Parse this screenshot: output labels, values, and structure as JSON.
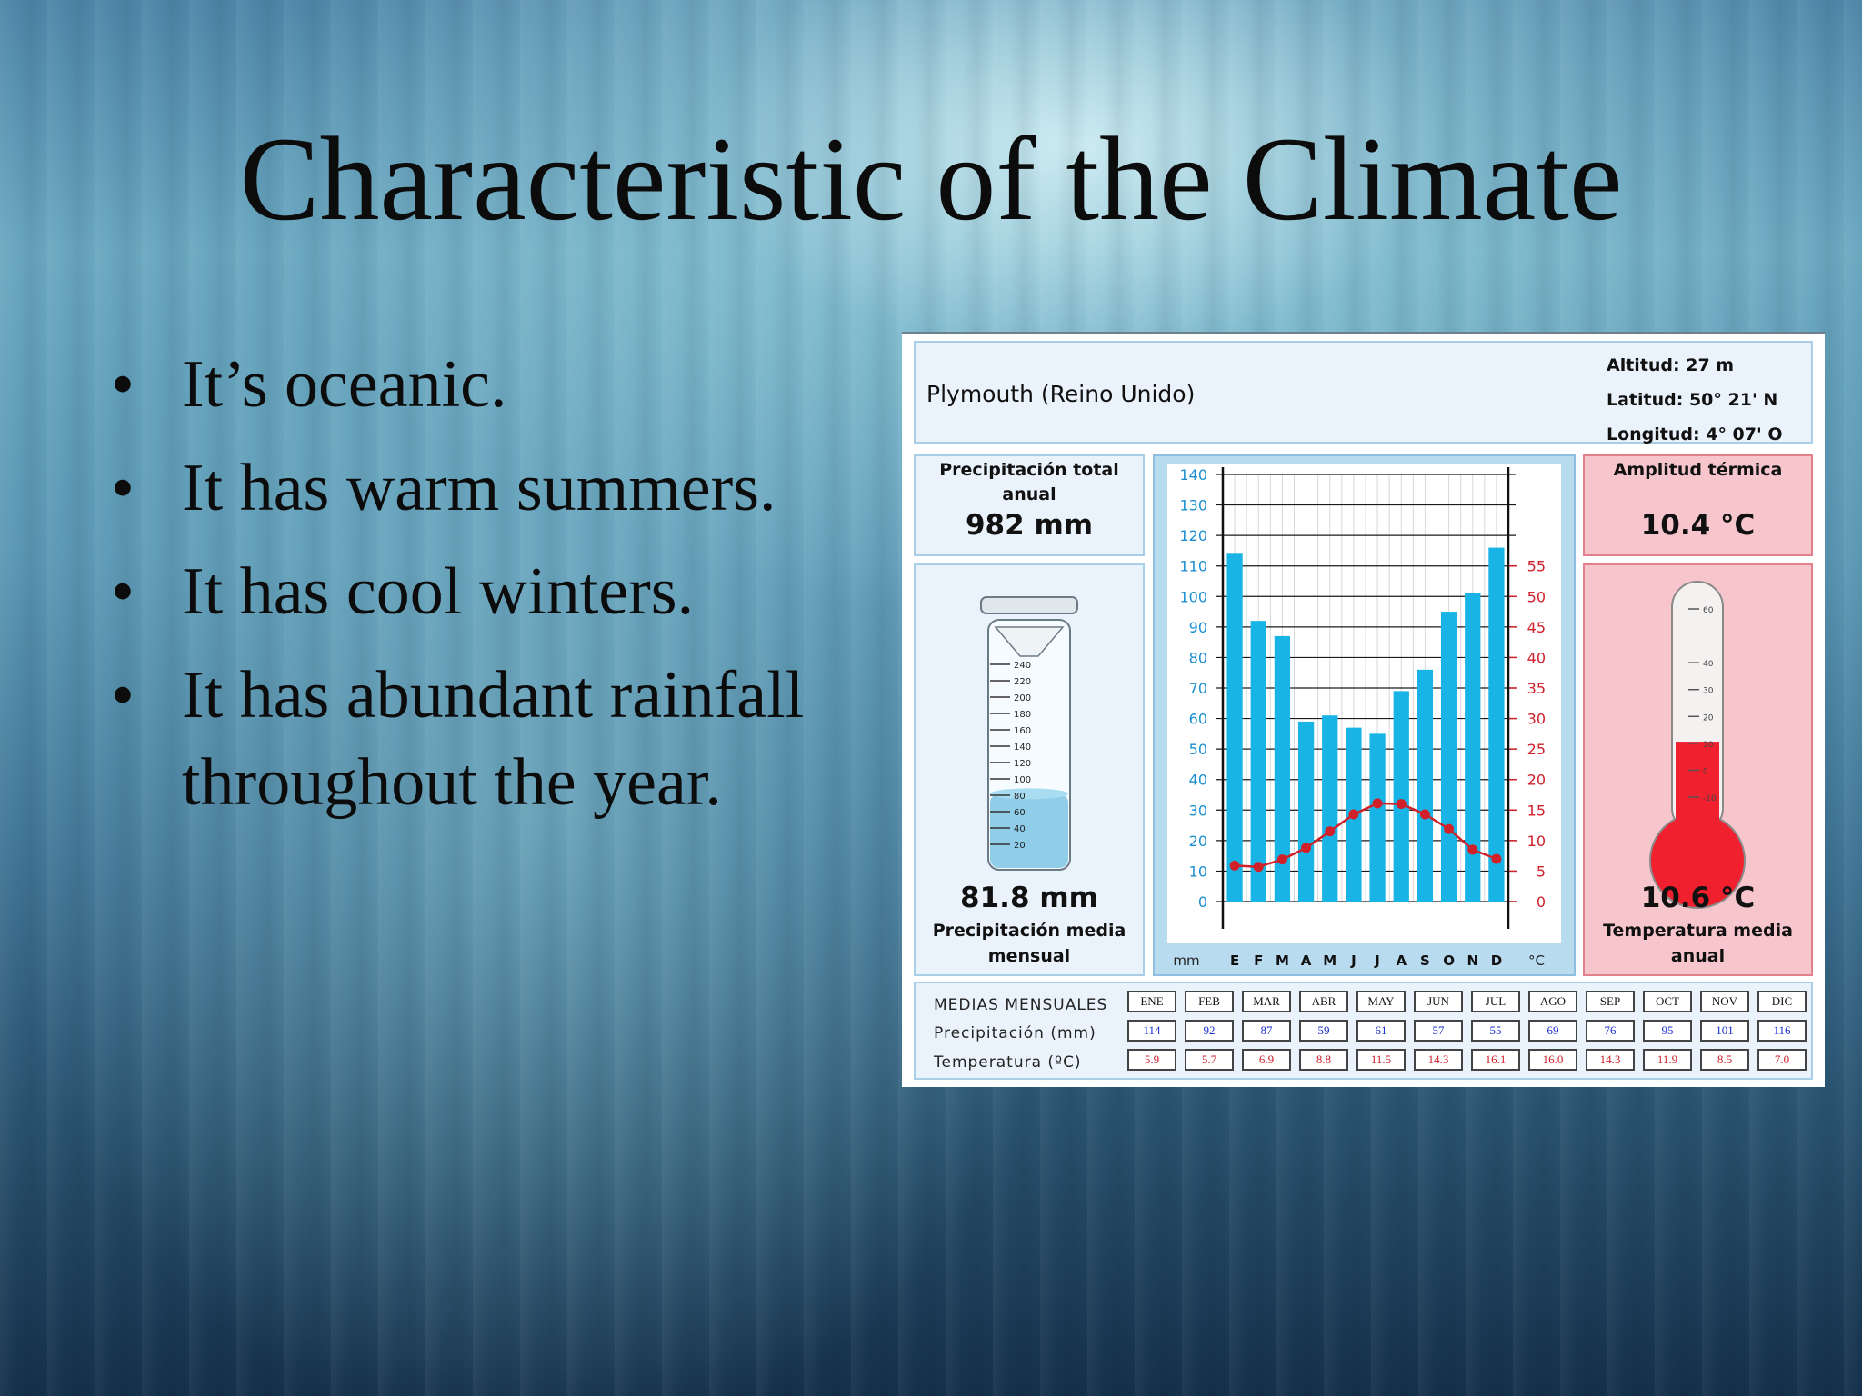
{
  "slide": {
    "title": "Characteristic of the Climate",
    "bullets": [
      "It’s oceanic.",
      "It has warm summers.",
      "It has cool winters.",
      "It has abundant rainfall throughout the year."
    ],
    "bullet_glyph": "•"
  },
  "station": {
    "name": "Plymouth (Reino Unido)",
    "altitude": "Altitud: 27 m",
    "latitude": "Latitud: 50° 21' N",
    "longitude": "Longitud:   4° 07' O"
  },
  "panels": {
    "total_precip_label": "Precipitación total anual",
    "total_precip_value": "982 mm",
    "amplitude_label": "Amplitud térmica",
    "amplitude_value": "10.4 °C",
    "monthly_precip_value": "81.8 mm",
    "monthly_precip_label": "Precipitación media mensual",
    "mean_temp_value": "10.6 °C",
    "mean_temp_label": "Temperatura media anual",
    "cylinder_ticks": [
      "240",
      "220",
      "200",
      "180",
      "160",
      "140",
      "120",
      "100",
      "80",
      "60",
      "40",
      "20"
    ],
    "cylinder_fill_value": 81.8,
    "cylinder_max": 250,
    "thermo_ticks": [
      "60",
      "40",
      "30",
      "20",
      "10",
      "0",
      "-10"
    ],
    "thermo_fill_value": 10.6
  },
  "colors": {
    "bar": "#19b4e6",
    "temp_line": "#d0202a",
    "cylinder_water": "#7cc4e4",
    "thermo_red": "#f0202e"
  },
  "chart_data": {
    "type": "bar",
    "categories": [
      "E",
      "F",
      "M",
      "A",
      "M",
      "J",
      "J",
      "A",
      "S",
      "O",
      "N",
      "D"
    ],
    "series": [
      {
        "values": [
          114,
          92,
          87,
          59,
          61,
          57,
          55,
          69,
          76,
          95,
          101,
          116
        ]
      },
      {
        "values": [
          5.9,
          5.7,
          6.9,
          8.8,
          11.5,
          14.3,
          16.1,
          16.0,
          14.3,
          11.9,
          8.5,
          7.0
        ]
      }
    ],
    "left_axis": {
      "unit": "mm",
      "ticks": [
        0,
        10,
        20,
        30,
        40,
        50,
        60,
        70,
        80,
        90,
        100,
        110,
        120,
        130,
        140
      ],
      "ylim": [
        0,
        140
      ]
    },
    "right_axis": {
      "unit": "°C",
      "ticks": [
        0,
        5,
        10,
        15,
        20,
        25,
        30,
        35,
        40,
        45,
        50,
        55
      ],
      "ylim": [
        0,
        70
      ]
    },
    "grid": true
  },
  "table": {
    "header_label": "MEDIAS MENSUALES",
    "precip_label": "Precipitación (mm)",
    "temp_label": "Temperatura (ºC)",
    "months": [
      "ENE",
      "FEB",
      "MAR",
      "ABR",
      "MAY",
      "JUN",
      "JUL",
      "AGO",
      "SEP",
      "OCT",
      "NOV",
      "DIC"
    ],
    "precip": [
      "114",
      "92",
      "87",
      "59",
      "61",
      "57",
      "55",
      "69",
      "76",
      "95",
      "101",
      "116"
    ],
    "temp": [
      "5.9",
      "5.7",
      "6.9",
      "8.8",
      "11.5",
      "14.3",
      "16.1",
      "16.0",
      "14.3",
      "11.9",
      "8.5",
      "7.0"
    ]
  }
}
